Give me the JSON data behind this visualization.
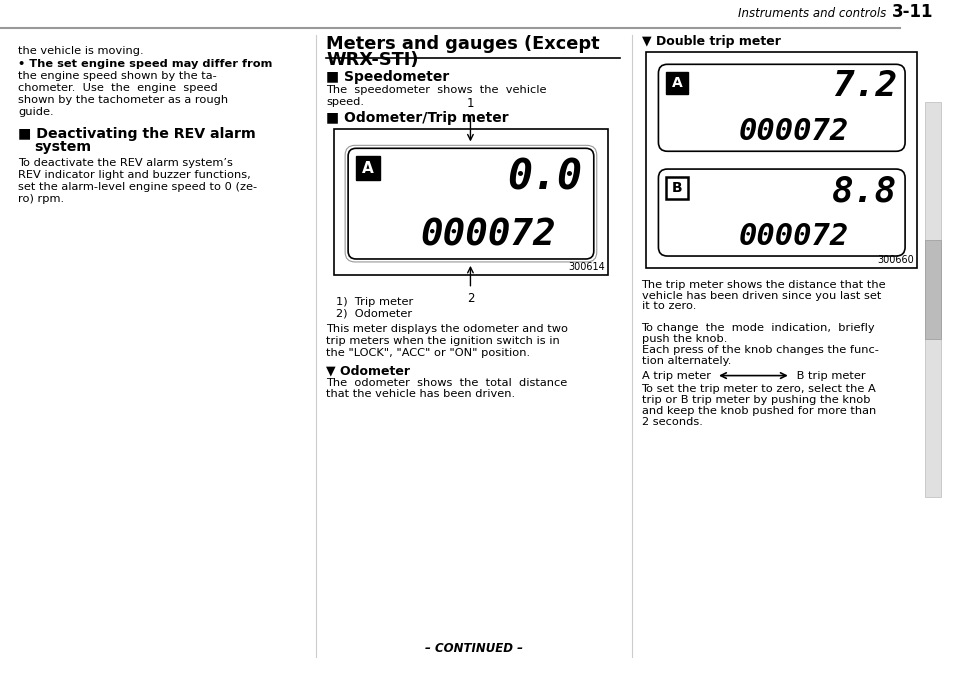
{
  "page_bg": "#ffffff",
  "header_italic": "Instruments and controls",
  "header_bold": "3-11",
  "footer_text": "- CONTINUED -",
  "col2_title_line1": "Meters and gauges (Except",
  "col2_title_line2": "WRX-STI)",
  "col2_sec1_head": "Speedometer",
  "col2_sec1_body1": "The  speedometer  shows  the  vehicle",
  "col2_sec1_body2": "speed.",
  "col2_sec2_head": "Odometer/Trip meter",
  "col2_diag_A": "A",
  "col2_diag_top": "0.0",
  "col2_diag_bot": "000072",
  "col2_diag_code": "300614",
  "col2_legend1": "1)  Trip meter",
  "col2_legend2": "2)  Odometer",
  "col2_body2a": "This meter displays the odometer and two",
  "col2_body2b": "trip meters when the ignition switch is in",
  "col2_body2c": "the \"LOCK\", \"ACC\" or \"ON\" position.",
  "col2_sub1_head": "Odometer",
  "col2_sub1_b1": "The  odometer  shows  the  total  distance",
  "col2_sub1_b2": "that the vehicle has been driven.",
  "col3_head": "Double trip meter",
  "col3_diag_A": "A",
  "col3_diag_top1": "7.2",
  "col3_diag_bot1": "000072",
  "col3_diag_B": "B",
  "col3_diag_top2": "8.8",
  "col3_diag_bot2": "000072",
  "col3_diag_code": "300660",
  "col3_b1a": "The trip meter shows the distance that the",
  "col3_b1b": "vehicle has been driven since you last set",
  "col3_b1c": "it to zero.",
  "col3_b2a": "To change  the  mode  indication,  briefly",
  "col3_b2b": "push the knob.",
  "col3_b3a": "Each press of the knob changes the func-",
  "col3_b3b": "tion alternately.",
  "col3_arrow_left": "A trip meter ",
  "col3_arrow_right": " B trip meter",
  "col3_b4a": "To set the trip meter to zero, select the A",
  "col3_b4b": "trip or B trip meter by pushing the knob",
  "col3_b4c": "and keep the knob pushed for more than",
  "col3_b4d": "2 seconds."
}
